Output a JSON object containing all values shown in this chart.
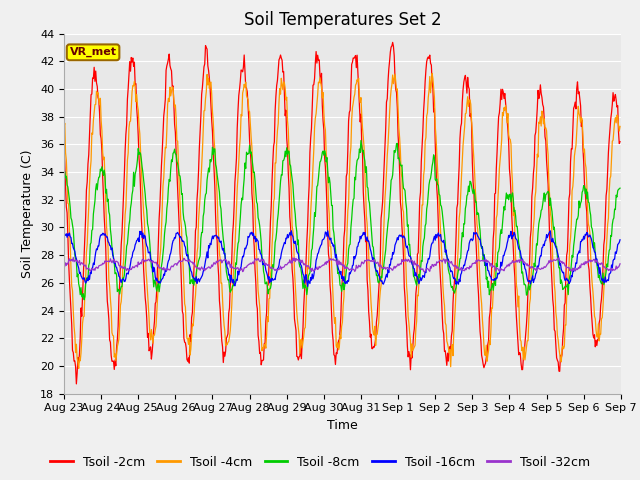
{
  "title": "Soil Temperatures Set 2",
  "xlabel": "Time",
  "ylabel": "Soil Temperature (C)",
  "ylim": [
    18,
    44
  ],
  "yticks": [
    18,
    20,
    22,
    24,
    26,
    28,
    30,
    32,
    34,
    36,
    38,
    40,
    42,
    44
  ],
  "series_labels": [
    "Tsoil -2cm",
    "Tsoil -4cm",
    "Tsoil -8cm",
    "Tsoil -16cm",
    "Tsoil -32cm"
  ],
  "series_colors": [
    "#ff0000",
    "#ff9900",
    "#00cc00",
    "#0000ff",
    "#9933cc"
  ],
  "annotation_text": "VR_met",
  "annotation_bg": "#ffff00",
  "annotation_border": "#996600",
  "fig_bg": "#f0f0f0",
  "plot_bg": "#e8e8e8",
  "n_days": 15,
  "xtick_labels": [
    "Aug 23",
    "Aug 24",
    "Aug 25",
    "Aug 26",
    "Aug 27",
    "Aug 28",
    "Aug 29",
    "Aug 30",
    "Aug 31",
    "Sep 1",
    "Sep 2",
    "Sep 3",
    "Sep 4",
    "Sep 5",
    "Sep 6",
    "Sep 7"
  ],
  "title_fontsize": 12,
  "axis_label_fontsize": 9,
  "tick_fontsize": 8,
  "legend_fontsize": 9,
  "pts_per_day": 48
}
